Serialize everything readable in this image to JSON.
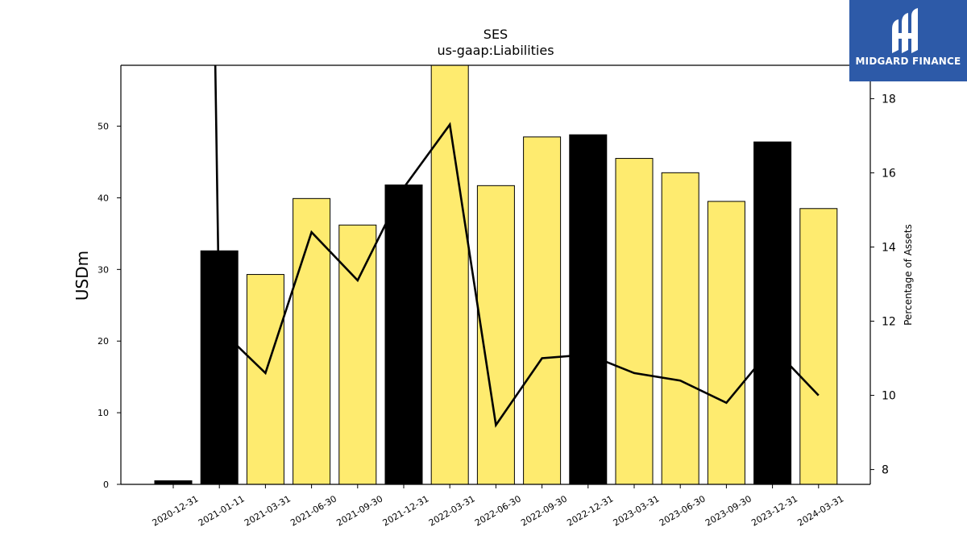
{
  "title": "SES",
  "subtitle": "us-gaap:Liabilities",
  "logo": {
    "text": "MIDGARD FINANCE"
  },
  "colors": {
    "annual": "#000000",
    "quarter": "#feeb6f",
    "line": "#000000",
    "logo_bg": "#2d5aa8"
  },
  "chart_data": {
    "type": "bar",
    "categories": [
      "2020-12-31",
      "2021-01-11",
      "2021-03-31",
      "2021-06-30",
      "2021-09-30",
      "2021-12-31",
      "2022-03-31",
      "2022-06-30",
      "2022-09-30",
      "2022-12-31",
      "2023-03-31",
      "2023-06-30",
      "2023-09-30",
      "2023-12-31",
      "2024-03-31"
    ],
    "ylabel": "USDm",
    "y2label": "Percentage of Assets",
    "ylim": [
      0,
      58.5
    ],
    "y2lim": [
      7.6,
      18.9
    ],
    "yticks": [
      0,
      10,
      20,
      30,
      40,
      50
    ],
    "y2ticks": [
      8,
      10,
      12,
      14,
      16,
      18
    ],
    "series": [
      {
        "type": "bar",
        "values": [
          0.5,
          32.6,
          29.3,
          39.9,
          36.2,
          41.8,
          58.5,
          41.7,
          48.5,
          48.8,
          45.5,
          43.5,
          39.5,
          47.8,
          38.5
        ],
        "highlight": [
          true,
          true,
          false,
          false,
          false,
          true,
          false,
          false,
          false,
          true,
          false,
          false,
          false,
          true,
          false
        ]
      },
      {
        "type": "line",
        "axis": "right",
        "values": [
          null,
          11.8,
          10.6,
          14.4,
          13.1,
          15.6,
          17.3,
          9.2,
          11.0,
          11.1,
          10.6,
          10.4,
          9.8,
          11.3,
          10.0
        ]
      }
    ],
    "grid": false,
    "legend": "none"
  }
}
